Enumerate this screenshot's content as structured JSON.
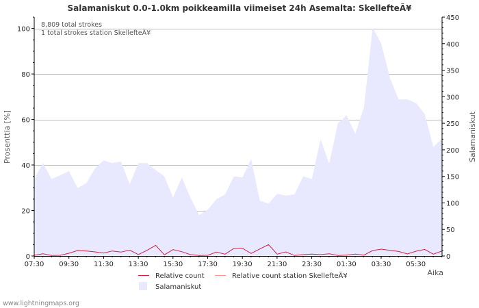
{
  "chart_data": {
    "type": "area",
    "title": "Salamaniskut 0.0-1.0km poikkeamilla viimeiset 24h Asemalta: SkellefteÃ¥",
    "ylabel_left": "Prosenttia   [%]",
    "ylabel_right": "Salamaniskut",
    "xlabel": "Aika",
    "ylim_left": [
      0,
      105
    ],
    "ylim_right": [
      0,
      450
    ],
    "yticks_left": [
      "0",
      "20",
      "40",
      "60",
      "80",
      "100"
    ],
    "yticks_right": [
      "0",
      "50",
      "100",
      "150",
      "200",
      "250",
      "300",
      "350",
      "400",
      "450"
    ],
    "x_ticks": [
      "07:30",
      "09:30",
      "11:30",
      "13:30",
      "15:30",
      "17:30",
      "19:30",
      "21:30",
      "23:30",
      "01:30",
      "03:30",
      "05:30"
    ],
    "annotations": [
      "8,809 total strokes",
      "1 total strokes station SkellefteÃ¥"
    ],
    "legend": [
      "Relative count",
      "Relative count station SkellefteÃ¥",
      "Salamaniskut"
    ],
    "colors": {
      "area": "#e8e8ff",
      "relative": "#cc2244",
      "relative_station": "#ff9999",
      "grid": "#bbbbbb"
    },
    "series": [
      {
        "name": "Salamaniskut",
        "axis": "right",
        "values": [
          145,
          175,
          145,
          152,
          160,
          128,
          137,
          165,
          180,
          175,
          178,
          135,
          175,
          175,
          162,
          150,
          110,
          148,
          110,
          77,
          87,
          107,
          116,
          150,
          148,
          183,
          104,
          99,
          117,
          114,
          116,
          150,
          145,
          220,
          174,
          250,
          265,
          230,
          280,
          430,
          400,
          335,
          295,
          295,
          288,
          268,
          205,
          222
        ]
      },
      {
        "name": "Relative count",
        "axis": "left",
        "values": [
          0.3,
          1.0,
          0.2,
          0.3,
          1.2,
          2.4,
          2.2,
          1.8,
          1.3,
          2.2,
          1.7,
          2.6,
          0.6,
          2.5,
          4.7,
          0.5,
          2.8,
          1.9,
          0.6,
          0.2,
          0.3,
          1.7,
          0.8,
          3.3,
          3.4,
          1.1,
          3.1,
          5.0,
          0.8,
          1.8,
          0.2,
          0.6,
          0.8,
          0.6,
          1.0,
          0.2,
          0.4,
          0.8,
          0.4,
          2.4,
          3.0,
          2.5,
          2.0,
          0.9,
          2.1,
          2.9,
          0.8,
          2.2
        ]
      }
    ]
  },
  "footer": "www.lightningmaps.org"
}
